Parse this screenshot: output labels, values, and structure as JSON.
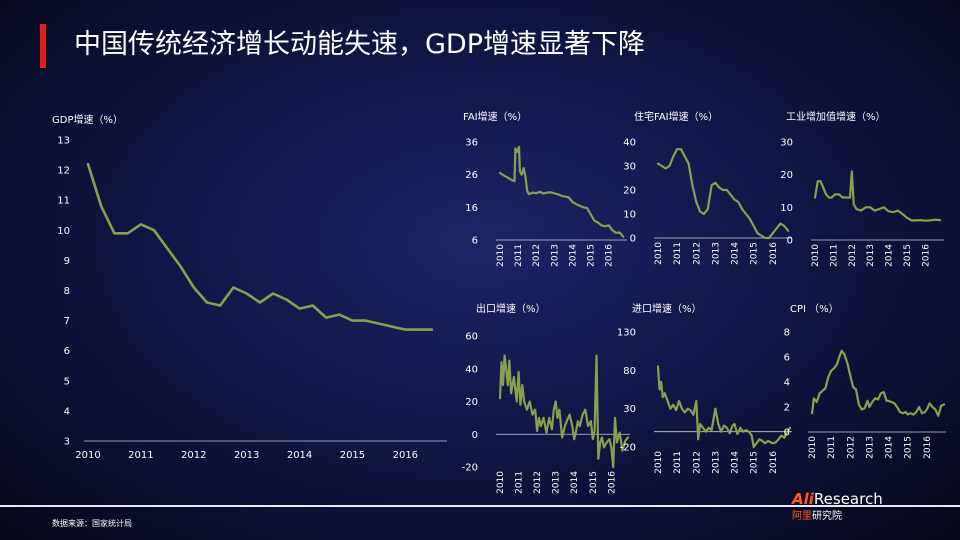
{
  "title": "中国传统经济增长动能失速，GDP增速显著下降",
  "source": "数据来源：国家统计局",
  "logo": {
    "main_accent": "Ali",
    "main_rest": "Research",
    "sub_accent": "阿里",
    "sub_rest": "研究院"
  },
  "colors": {
    "line": "#8aa04c",
    "accent_red": "#e01e1e",
    "background": "#111647"
  },
  "chart_data": [
    {
      "id": "gdp",
      "type": "line",
      "title": "GDP增速（%）",
      "x_ticks": [
        "2010",
        "2011",
        "2012",
        "2013",
        "2014",
        "2015",
        "2016"
      ],
      "y_ticks": [
        3,
        4,
        5,
        6,
        7,
        8,
        9,
        10,
        11,
        12,
        13
      ],
      "xlim": [
        2010,
        2016.75
      ],
      "ylim": [
        3,
        13
      ],
      "x": [
        2010.0,
        2010.25,
        2010.5,
        2010.75,
        2011.0,
        2011.25,
        2011.5,
        2011.75,
        2012.0,
        2012.25,
        2012.5,
        2012.75,
        2013.0,
        2013.25,
        2013.5,
        2013.75,
        2014.0,
        2014.25,
        2014.5,
        2014.75,
        2015.0,
        2015.25,
        2015.5,
        2015.75,
        2016.0,
        2016.25,
        2016.5
      ],
      "values": [
        12.2,
        10.8,
        9.9,
        9.9,
        10.2,
        10.0,
        9.4,
        8.8,
        8.1,
        7.6,
        7.5,
        8.1,
        7.9,
        7.6,
        7.9,
        7.7,
        7.4,
        7.5,
        7.1,
        7.2,
        7.0,
        7.0,
        6.9,
        6.8,
        6.7,
        6.7,
        6.7
      ],
      "grid": false
    },
    {
      "id": "fai",
      "type": "line",
      "title": "FAI增速（%）",
      "x_ticks": [
        "2010",
        "2011",
        "2012",
        "2013",
        "2014",
        "2015",
        "2016"
      ],
      "y_ticks": [
        6,
        16,
        26,
        36
      ],
      "xlim": [
        2010,
        2016.9
      ],
      "ylim": [
        6,
        36
      ],
      "x": [
        2010.0,
        2010.2,
        2010.4,
        2010.6,
        2010.8,
        2010.85,
        2010.95,
        2011.05,
        2011.1,
        2011.2,
        2011.3,
        2011.4,
        2011.5,
        2011.6,
        2011.8,
        2012.0,
        2012.2,
        2012.4,
        2012.6,
        2012.8,
        2013.0,
        2013.2,
        2013.4,
        2013.6,
        2013.8,
        2014.0,
        2014.2,
        2014.4,
        2014.6,
        2014.8,
        2015.0,
        2015.2,
        2015.4,
        2015.6,
        2015.8,
        2016.0,
        2016.2,
        2016.4,
        2016.6,
        2016.8
      ],
      "values": [
        26.5,
        25.8,
        25.2,
        24.5,
        24.0,
        34.0,
        33.0,
        34.5,
        27.0,
        26.0,
        28.0,
        25.5,
        21.0,
        20.0,
        20.5,
        20.3,
        20.8,
        20.2,
        20.5,
        20.6,
        20.3,
        20.0,
        19.5,
        19.3,
        19.0,
        17.6,
        17.0,
        16.5,
        16.0,
        15.8,
        13.9,
        12.0,
        11.4,
        10.5,
        10.2,
        10.5,
        9.0,
        8.2,
        8.3,
        7.0
      ],
      "grid": false
    },
    {
      "id": "housing_fai",
      "type": "line",
      "title": "住宅FAI增速（%）",
      "x_ticks": [
        "2010",
        "2011",
        "2012",
        "2013",
        "2014",
        "2015",
        "2016"
      ],
      "y_ticks": [
        0,
        10,
        20,
        30,
        40
      ],
      "xlim": [
        2010,
        2016.9
      ],
      "ylim": [
        0,
        40
      ],
      "x": [
        2010.0,
        2010.2,
        2010.4,
        2010.6,
        2010.8,
        2011.0,
        2011.2,
        2011.4,
        2011.6,
        2011.8,
        2012.0,
        2012.2,
        2012.4,
        2012.6,
        2012.8,
        2013.0,
        2013.2,
        2013.4,
        2013.6,
        2013.8,
        2014.0,
        2014.2,
        2014.4,
        2014.6,
        2014.8,
        2015.0,
        2015.2,
        2015.4,
        2015.6,
        2015.8,
        2016.0,
        2016.2,
        2016.4,
        2016.6,
        2016.8
      ],
      "values": [
        31,
        30,
        29,
        30,
        34,
        37,
        37,
        34,
        31,
        22,
        15,
        11,
        10,
        12,
        22,
        23,
        21,
        20,
        20,
        18,
        16,
        15,
        12,
        10,
        8,
        5,
        2,
        1,
        0,
        0,
        2,
        4,
        6,
        5,
        3
      ],
      "grid": false
    },
    {
      "id": "industrial",
      "type": "line",
      "title": "工业增加值增速（%）",
      "x_ticks": [
        "2010",
        "2011",
        "2012",
        "2013",
        "2014",
        "2015",
        "2016"
      ],
      "y_ticks": [
        0,
        10,
        20,
        30
      ],
      "xlim": [
        2010,
        2016.9
      ],
      "ylim": [
        0,
        30
      ],
      "x": [
        2010.0,
        2010.15,
        2010.3,
        2010.45,
        2010.6,
        2010.75,
        2010.9,
        2011.1,
        2011.3,
        2011.5,
        2011.7,
        2011.9,
        2012.0,
        2012.1,
        2012.25,
        2012.5,
        2012.75,
        2013.0,
        2013.25,
        2013.5,
        2013.75,
        2014.0,
        2014.25,
        2014.5,
        2014.75,
        2015.0,
        2015.25,
        2015.5,
        2015.75,
        2016.0,
        2016.25,
        2016.5,
        2016.8
      ],
      "values": [
        13,
        18,
        18,
        16,
        14,
        13,
        13,
        14,
        14,
        13,
        13,
        13,
        21,
        11,
        9.5,
        9,
        10,
        10,
        9,
        9.5,
        10,
        8.8,
        8.5,
        9,
        8,
        6.8,
        6,
        6,
        6.1,
        5.9,
        6,
        6.2,
        6.1
      ],
      "grid": false
    },
    {
      "id": "export",
      "type": "line",
      "title": "出口增速（%）",
      "x_ticks": [
        "2010",
        "2011",
        "2012",
        "2013",
        "2014",
        "2015",
        "2016"
      ],
      "y_ticks": [
        -20,
        0,
        20,
        40,
        60
      ],
      "xlim": [
        2010,
        2016.9
      ],
      "ylim": [
        -20,
        60
      ],
      "x": [
        2010.0,
        2010.08,
        2010.16,
        2010.25,
        2010.33,
        2010.42,
        2010.5,
        2010.6,
        2010.75,
        2010.9,
        2011.0,
        2011.1,
        2011.2,
        2011.3,
        2011.45,
        2011.6,
        2011.75,
        2011.9,
        2012.0,
        2012.1,
        2012.2,
        2012.35,
        2012.5,
        2012.65,
        2012.8,
        2012.9,
        2013.0,
        2013.1,
        2013.2,
        2013.35,
        2013.5,
        2013.6,
        2013.75,
        2013.9,
        2014.0,
        2014.1,
        2014.2,
        2014.3,
        2014.45,
        2014.6,
        2014.75,
        2014.9,
        2015.0,
        2015.1,
        2015.2,
        2015.3,
        2015.4,
        2015.5,
        2015.6,
        2015.75,
        2015.9,
        2016.0,
        2016.1,
        2016.2,
        2016.3,
        2016.45,
        2016.6,
        2016.75,
        2016.9
      ],
      "values": [
        22,
        44,
        30,
        48,
        40,
        30,
        45,
        25,
        35,
        20,
        38,
        18,
        30,
        20,
        15,
        20,
        12,
        15,
        2,
        10,
        5,
        10,
        1,
        10,
        3,
        15,
        20,
        10,
        15,
        -2,
        5,
        8,
        12,
        5,
        -3,
        2,
        8,
        5,
        12,
        15,
        5,
        8,
        -3,
        2,
        48,
        -15,
        -5,
        -2,
        -8,
        -5,
        -3,
        -8,
        -20,
        10,
        -5,
        1,
        -10,
        -4,
        -2
      ],
      "grid": false
    },
    {
      "id": "import",
      "type": "line",
      "title": "进口增速（%）",
      "x_ticks": [
        "2010",
        "2011",
        "2012",
        "2013",
        "2014",
        "2015",
        "2016"
      ],
      "y_ticks": [
        -20,
        30,
        80,
        130
      ],
      "xlim": [
        2010,
        2016.9
      ],
      "ylim": [
        -20,
        130
      ],
      "x": [
        2010.0,
        2010.08,
        2010.16,
        2010.25,
        2010.35,
        2010.5,
        2010.65,
        2010.8,
        2010.95,
        2011.1,
        2011.25,
        2011.4,
        2011.55,
        2011.7,
        2011.85,
        2012.0,
        2012.1,
        2012.2,
        2012.35,
        2012.5,
        2012.65,
        2012.8,
        2013.0,
        2013.15,
        2013.3,
        2013.45,
        2013.6,
        2013.75,
        2013.9,
        2014.0,
        2014.15,
        2014.3,
        2014.45,
        2014.6,
        2014.75,
        2014.9,
        2015.0,
        2015.15,
        2015.3,
        2015.45,
        2015.6,
        2015.75,
        2015.9,
        2016.0,
        2016.15,
        2016.3,
        2016.45,
        2016.6,
        2016.75,
        2016.9
      ],
      "values": [
        85,
        55,
        65,
        45,
        50,
        40,
        30,
        35,
        28,
        40,
        30,
        25,
        30,
        28,
        22,
        40,
        -10,
        10,
        5,
        0,
        5,
        2,
        30,
        10,
        0,
        8,
        5,
        -2,
        8,
        10,
        -3,
        5,
        0,
        2,
        0,
        -5,
        -20,
        -15,
        -10,
        -12,
        -15,
        -12,
        -14,
        -15,
        -14,
        -10,
        -5,
        -8,
        0,
        5
      ],
      "grid": false
    },
    {
      "id": "cpi",
      "type": "line",
      "title": "CPI （%）",
      "x_ticks": [
        "2010",
        "2011",
        "2012",
        "2013",
        "2014",
        "2015",
        "2016"
      ],
      "y_ticks": [
        0,
        2,
        4,
        6,
        8
      ],
      "xlim": [
        2010,
        2016.9
      ],
      "ylim": [
        0,
        8
      ],
      "x": [
        2010.0,
        2010.1,
        2010.25,
        2010.4,
        2010.55,
        2010.7,
        2010.85,
        2011.0,
        2011.15,
        2011.3,
        2011.45,
        2011.55,
        2011.7,
        2011.85,
        2012.0,
        2012.15,
        2012.3,
        2012.45,
        2012.6,
        2012.75,
        2012.9,
        2013.0,
        2013.15,
        2013.3,
        2013.45,
        2013.6,
        2013.75,
        2013.9,
        2014.0,
        2014.15,
        2014.3,
        2014.45,
        2014.6,
        2014.75,
        2014.9,
        2015.0,
        2015.15,
        2015.3,
        2015.45,
        2015.6,
        2015.75,
        2015.9,
        2016.0,
        2016.15,
        2016.3,
        2016.45,
        2016.6,
        2016.75,
        2016.9
      ],
      "values": [
        1.5,
        2.7,
        2.4,
        3.1,
        3.3,
        3.5,
        4.4,
        4.9,
        5.1,
        5.4,
        6.1,
        6.5,
        6.2,
        5.5,
        4.5,
        3.6,
        3.4,
        2.2,
        1.8,
        1.9,
        2.5,
        2.0,
        2.4,
        2.7,
        2.6,
        3.1,
        3.2,
        2.5,
        2.5,
        2.4,
        2.3,
        2.0,
        1.6,
        1.5,
        1.6,
        1.4,
        1.5,
        1.4,
        1.6,
        2.0,
        1.5,
        1.6,
        1.8,
        2.3,
        2.0,
        1.8,
        1.3,
        2.1,
        2.2
      ],
      "grid": false
    }
  ]
}
